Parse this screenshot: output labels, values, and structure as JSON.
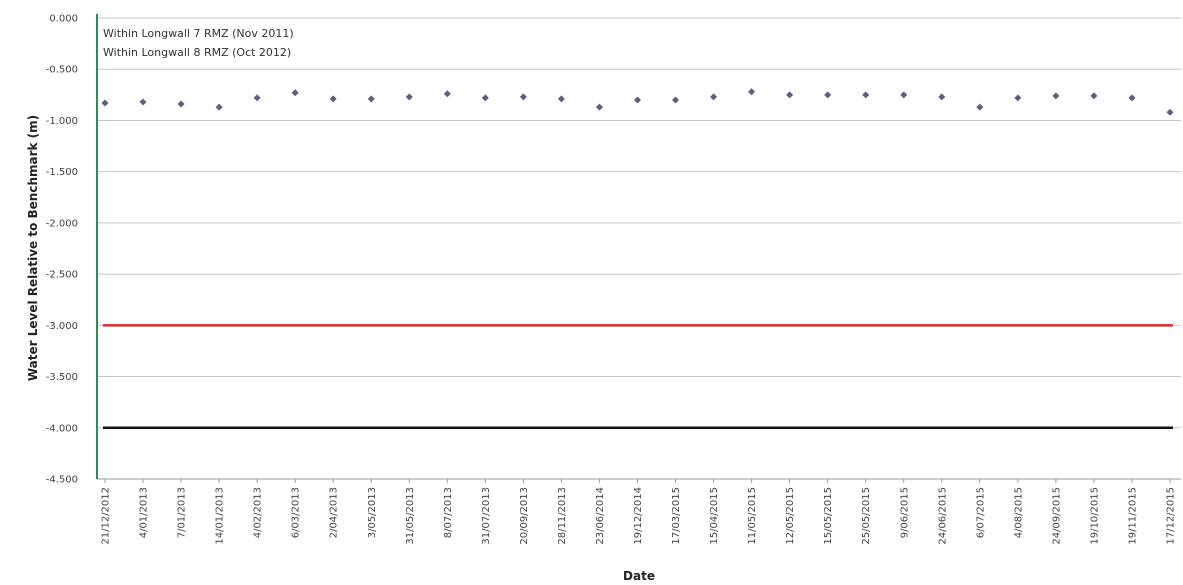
{
  "chart_data": {
    "type": "scatter",
    "title": "",
    "xlabel": "Date",
    "ylabel": "Water Level Relative to Benchmark (m)",
    "ylim": [
      -4.5,
      0
    ],
    "yticks": [
      "0.000",
      "-0.500",
      "-1.000",
      "-1.500",
      "-2.000",
      "-2.500",
      "-3.000",
      "-3.500",
      "-4.000",
      "-4.500"
    ],
    "grid": true,
    "categories": [
      "21/12/2012",
      "4/01/2013",
      "7/01/2013",
      "14/01/2013",
      "4/02/2013",
      "6/03/2013",
      "2/04/2013",
      "3/05/2013",
      "31/05/2013",
      "8/07/2013",
      "31/07/2013",
      "20/09/2013",
      "28/11/2013",
      "23/06/2014",
      "19/12/2014",
      "17/03/2015",
      "15/04/2015",
      "11/05/2015",
      "12/05/2015",
      "15/05/2015",
      "25/05/2015",
      "9/06/2015",
      "24/06/2015",
      "6/07/2015",
      "4/08/2015",
      "24/09/2015",
      "19/10/2015",
      "19/11/2015",
      "17/12/2015"
    ],
    "series": [
      {
        "name": "",
        "color": "#5a6080",
        "values": [
          -0.83,
          -0.82,
          -0.84,
          -0.87,
          -0.78,
          -0.73,
          -0.79,
          -0.79,
          -0.77,
          -0.74,
          -0.78,
          -0.77,
          -0.79,
          -0.87,
          -0.8,
          -0.8,
          -0.77,
          -0.72,
          -0.75,
          -0.75,
          -0.75,
          -0.75,
          -0.77,
          -0.87,
          -0.78,
          -0.76,
          -0.76,
          -0.78,
          -0.92
        ]
      }
    ],
    "reference_lines": [
      {
        "value": -3.0,
        "color": "#ee2222"
      },
      {
        "value": -4.0,
        "color": "#111111"
      }
    ],
    "vertical_marker": {
      "color": "#2e8b57"
    },
    "annotations": [
      "Within Longwall 7 RMZ (Nov 2011)",
      "Within Longwall 8 RMZ (Oct 2012)"
    ]
  }
}
